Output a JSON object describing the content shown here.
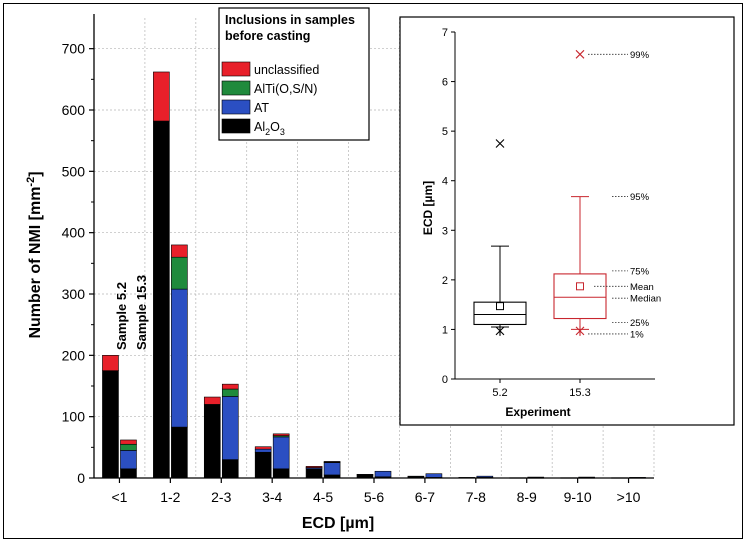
{
  "chart_data": [
    {
      "type": "bar",
      "stacked": true,
      "xlabel": "ECD [µm]",
      "ylabel": "Number of NMI [mm",
      "ylabel_sup": "-2",
      "ylabel_close": "]",
      "ylim": [
        0,
        750
      ],
      "yticks": [
        0,
        100,
        200,
        300,
        400,
        500,
        600,
        700
      ],
      "grid": true,
      "categories": [
        "<1",
        "1-2",
        "2-3",
        "3-4",
        "4-5",
        "5-6",
        "6-7",
        "7-8",
        "8-9",
        "9-10",
        ">10"
      ],
      "legend": {
        "title_line1": "Inclusions in samples",
        "title_line2": "before casting",
        "position": "top-center"
      },
      "components": [
        {
          "name": "unclassified",
          "color": "#e8202a"
        },
        {
          "name": "AlTi(O,S/N)",
          "color": "#1f8a3c"
        },
        {
          "name": "AT",
          "color": "#2b4fc2"
        },
        {
          "name": "Al",
          "name_sub1": "2",
          "name_mid": "O",
          "name_sub2": "3",
          "color": "#000000"
        }
      ],
      "series": [
        {
          "name": "Sample 5.2",
          "stacks": [
            {
              "Al2O3": 175,
              "AT": 0,
              "AlTi(O,S/N)": 0,
              "unclassified": 25
            },
            {
              "Al2O3": 582,
              "AT": 0,
              "AlTi(O,S/N)": 0,
              "unclassified": 80
            },
            {
              "Al2O3": 120,
              "AT": 0,
              "AlTi(O,S/N)": 0,
              "unclassified": 12
            },
            {
              "Al2O3": 42,
              "AT": 5,
              "AlTi(O,S/N)": 0,
              "unclassified": 4
            },
            {
              "Al2O3": 15,
              "AT": 2,
              "AlTi(O,S/N)": 0,
              "unclassified": 2
            },
            {
              "Al2O3": 5,
              "AT": 1,
              "AlTi(O,S/N)": 0,
              "unclassified": 0
            },
            {
              "Al2O3": 2,
              "AT": 1,
              "AlTi(O,S/N)": 0,
              "unclassified": 0
            },
            {
              "Al2O3": 1,
              "AT": 0,
              "AlTi(O,S/N)": 0,
              "unclassified": 0
            },
            {
              "Al2O3": 0.5,
              "AT": 0,
              "AlTi(O,S/N)": 0,
              "unclassified": 0
            },
            {
              "Al2O3": 0.5,
              "AT": 0,
              "AlTi(O,S/N)": 0,
              "unclassified": 0
            },
            {
              "Al2O3": 0.5,
              "AT": 0,
              "AlTi(O,S/N)": 0,
              "unclassified": 0
            }
          ]
        },
        {
          "name": "Sample 15.3",
          "stacks": [
            {
              "Al2O3": 15,
              "AT": 30,
              "AlTi(O,S/N)": 10,
              "unclassified": 7
            },
            {
              "Al2O3": 83,
              "AT": 225,
              "AlTi(O,S/N)": 52,
              "unclassified": 20
            },
            {
              "Al2O3": 30,
              "AT": 103,
              "AlTi(O,S/N)": 12,
              "unclassified": 8
            },
            {
              "Al2O3": 15,
              "AT": 52,
              "AlTi(O,S/N)": 2,
              "unclassified": 3
            },
            {
              "Al2O3": 5,
              "AT": 20,
              "AlTi(O,S/N)": 1,
              "unclassified": 1
            },
            {
              "Al2O3": 2,
              "AT": 9,
              "AlTi(O,S/N)": 0,
              "unclassified": 0
            },
            {
              "Al2O3": 1,
              "AT": 6,
              "AlTi(O,S/N)": 0,
              "unclassified": 0
            },
            {
              "Al2O3": 1,
              "AT": 2,
              "AlTi(O,S/N)": 0,
              "unclassified": 0
            },
            {
              "Al2O3": 0.5,
              "AT": 1,
              "AlTi(O,S/N)": 0,
              "unclassified": 0
            },
            {
              "Al2O3": 0.5,
              "AT": 1,
              "AlTi(O,S/N)": 0,
              "unclassified": 0
            },
            {
              "Al2O3": 0.5,
              "AT": 0.5,
              "AlTi(O,S/N)": 0,
              "unclassified": 0
            }
          ]
        }
      ]
    },
    {
      "type": "box",
      "xlabel": "Experiment",
      "ylabel": "ECD [µm]",
      "ylim": [
        0,
        7
      ],
      "yticks": [
        0,
        1,
        2,
        3,
        4,
        5,
        6,
        7
      ],
      "categories": [
        "5.2",
        "15.3"
      ],
      "boxes": [
        {
          "name": "5.2",
          "color": "#000000",
          "p1": 0.97,
          "p5": 1.05,
          "q1": 1.1,
          "median": 1.3,
          "mean": 1.47,
          "q3": 1.55,
          "p95": 2.68,
          "p99": 4.75
        },
        {
          "name": "15.3",
          "color": "#c8262e",
          "p1": 0.97,
          "p5": 1.0,
          "q1": 1.22,
          "median": 1.65,
          "mean": 1.87,
          "q3": 2.12,
          "p95": 3.68,
          "p99": 6.55
        }
      ],
      "annotations": [
        "99%",
        "95%",
        "75%",
        "Mean",
        "Median",
        "25%",
        "1%"
      ]
    }
  ],
  "labels": {
    "sample_a": "Sample 5.2",
    "sample_b": "Sample 15.3"
  }
}
